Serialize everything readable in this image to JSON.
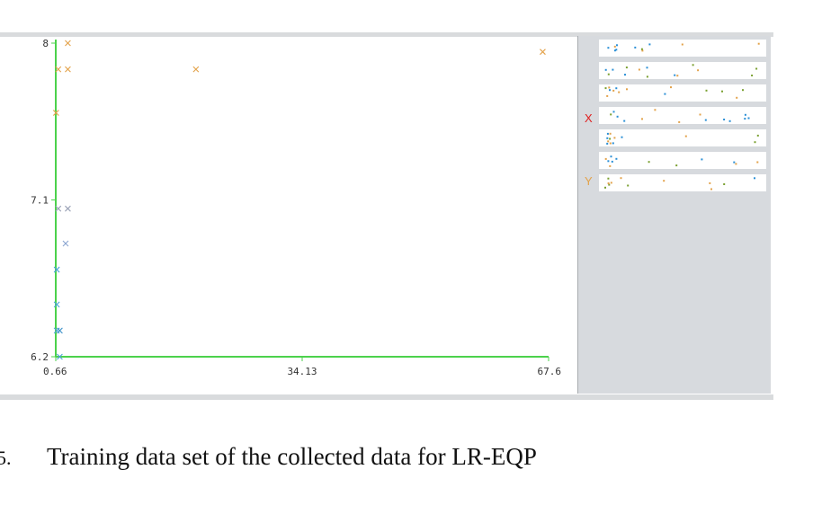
{
  "chart_data": {
    "type": "scatter",
    "title": "",
    "xlabel": "",
    "ylabel": "",
    "xlim": [
      0.66,
      67.6
    ],
    "ylim": [
      6.2,
      8
    ],
    "x_ticks": [
      "0.66",
      "34.13",
      "67.6"
    ],
    "y_ticks": [
      "8",
      "7.1",
      "6.2"
    ],
    "marker": "x",
    "axis_color": "#4cd24c",
    "points": [
      {
        "x": 2.3,
        "y": 8.0,
        "color": "#e3a24a"
      },
      {
        "x": 1.0,
        "y": 7.85,
        "color": "#e3a24a"
      },
      {
        "x": 2.3,
        "y": 7.85,
        "color": "#e3a24a"
      },
      {
        "x": 19.7,
        "y": 7.85,
        "color": "#e3a24a"
      },
      {
        "x": 66.8,
        "y": 7.95,
        "color": "#e3a24a"
      },
      {
        "x": 0.7,
        "y": 7.6,
        "color": "#e3a24a"
      },
      {
        "x": 1.0,
        "y": 7.05,
        "color": "#9aa2b6"
      },
      {
        "x": 2.3,
        "y": 7.05,
        "color": "#9aa2b6"
      },
      {
        "x": 2.0,
        "y": 6.85,
        "color": "#8aa4d0"
      },
      {
        "x": 0.8,
        "y": 6.7,
        "color": "#4ca3d6"
      },
      {
        "x": 0.8,
        "y": 6.5,
        "color": "#4ca3d6"
      },
      {
        "x": 0.8,
        "y": 6.35,
        "color": "#4ca3d6"
      },
      {
        "x": 1.2,
        "y": 6.35,
        "color": "#3a8fc8"
      },
      {
        "x": 1.2,
        "y": 6.2,
        "color": "#4ca3d6"
      }
    ],
    "side_panel": {
      "x_label": "X",
      "y_label": "Y",
      "x_label_color": "#e02020",
      "y_label_color": "#e3a24a",
      "strip_count": 7,
      "dot_colors": [
        "#e3a24a",
        "#2a8fd6",
        "#7aa030"
      ]
    }
  },
  "caption": {
    "prefix": "5.",
    "text": "Training data set of the collected data for LR-EQP"
  }
}
